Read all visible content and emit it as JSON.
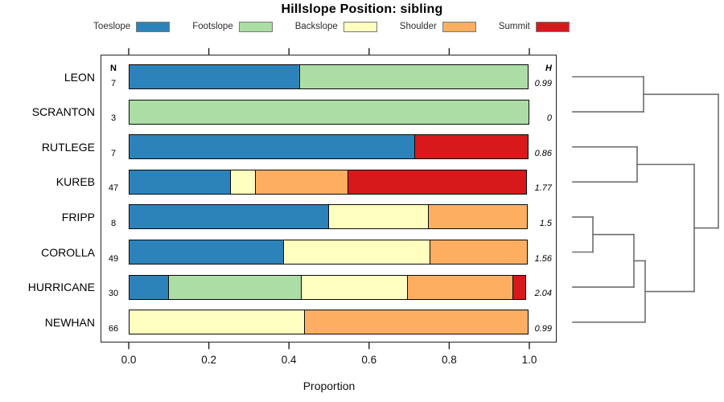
{
  "title": "Hillslope Position: sibling",
  "legend": {
    "items": [
      {
        "label": "Toeslope",
        "color": "#2B83BA"
      },
      {
        "label": "Footslope",
        "color": "#ABDDA4"
      },
      {
        "label": "Backslope",
        "color": "#FFFFBF"
      },
      {
        "label": "Shoulder",
        "color": "#FDAE61"
      },
      {
        "label": "Summit",
        "color": "#D7191C"
      }
    ]
  },
  "panel": {
    "n_header": "N",
    "h_header": "H"
  },
  "chart_data": {
    "type": "bar",
    "stacked": true,
    "orientation": "horizontal",
    "title": "Hillslope Position: sibling",
    "xlabel": "Proportion",
    "xlim": [
      0,
      1
    ],
    "x_ticks": [
      0.0,
      0.2,
      0.4,
      0.6,
      0.8,
      1.0
    ],
    "x_tick_labels": [
      "0.0",
      "0.2",
      "0.4",
      "0.6",
      "0.8",
      "1.0"
    ],
    "categories": [
      "LEON",
      "SCRANTON",
      "RUTLEGE",
      "KUREB",
      "FRIPP",
      "COROLLA",
      "HURRICANE",
      "NEWHAN"
    ],
    "n_obs": [
      7,
      3,
      7,
      47,
      8,
      49,
      30,
      66
    ],
    "shannon_H": [
      "0.99",
      "0",
      "0.86",
      "1.77",
      "1.5",
      "1.56",
      "2.04",
      "0.99"
    ],
    "series": [
      {
        "name": "Toeslope",
        "color": "#2B83BA",
        "values": [
          0.4286,
          0,
          0.7143,
          0.2553,
          0.5,
          0.3878,
          0.1,
          0
        ]
      },
      {
        "name": "Footslope",
        "color": "#ABDDA4",
        "values": [
          0.5714,
          1,
          0,
          0,
          0,
          0,
          0.3333,
          0
        ]
      },
      {
        "name": "Backslope",
        "color": "#FFFFBF",
        "values": [
          0,
          0,
          0,
          0.0638,
          0.25,
          0.3673,
          0.2667,
          0.4394
        ]
      },
      {
        "name": "Shoulder",
        "color": "#FDAE61",
        "values": [
          0,
          0,
          0,
          0.234,
          0.25,
          0.2449,
          0.2667,
          0.5606
        ]
      },
      {
        "name": "Summit",
        "color": "#D7191C",
        "values": [
          0,
          0,
          0.2857,
          0.4468,
          0,
          0,
          0.0333,
          0
        ]
      }
    ],
    "dendrogram": {
      "leaf_order": [
        "LEON",
        "SCRANTON",
        "RUTLEGE",
        "KUREB",
        "FRIPP",
        "COROLLA",
        "HURRICANE",
        "NEWHAN"
      ],
      "line_color": "#6e6e6e",
      "root": {
        "x": 893,
        "children": [
          {
            "x": 800,
            "children": [
              {
                "leaf": 0
              },
              {
                "leaf": 1
              }
            ]
          },
          {
            "x": 863,
            "children": [
              {
                "x": 792,
                "children": [
                  {
                    "leaf": 2
                  },
                  {
                    "leaf": 3
                  }
                ]
              },
              {
                "x": 802,
                "children": [
                  {
                    "x": 788,
                    "children": [
                      {
                        "x": 737,
                        "children": [
                          {
                            "leaf": 4
                          },
                          {
                            "leaf": 5
                          }
                        ]
                      },
                      {
                        "leaf": 6
                      }
                    ]
                  },
                  {
                    "leaf": 7
                  }
                ]
              }
            ]
          }
        ]
      }
    }
  }
}
